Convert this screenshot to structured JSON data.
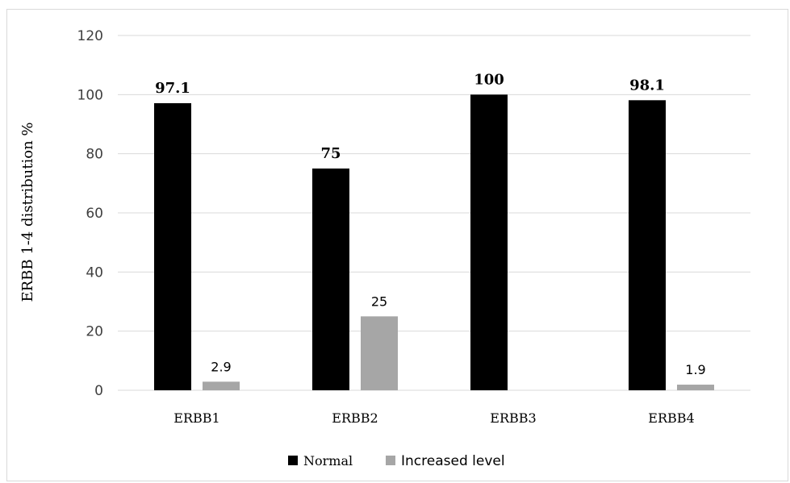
{
  "chart_data": {
    "type": "bar",
    "categories": [
      "ERBB1",
      "ERBB2",
      "ERBB3",
      "ERBB4"
    ],
    "series": [
      {
        "name": "Normal",
        "values": [
          97.1,
          75,
          100,
          98.1
        ],
        "labels": [
          "97.1",
          "75",
          "100",
          "98.1"
        ],
        "color": "#000000"
      },
      {
        "name": "Increased level",
        "values": [
          2.9,
          25,
          0,
          1.9
        ],
        "labels": [
          "2.9",
          "25",
          "",
          "1.9"
        ],
        "color": "#a6a6a6"
      }
    ],
    "title": "",
    "xlabel": "",
    "ylabel": "ERBB 1-4 distribution %",
    "ylim": [
      0,
      120
    ],
    "yticks": [
      "0",
      "20",
      "40",
      "60",
      "80",
      "100",
      "120"
    ],
    "grid": true,
    "legend": "bottom"
  }
}
